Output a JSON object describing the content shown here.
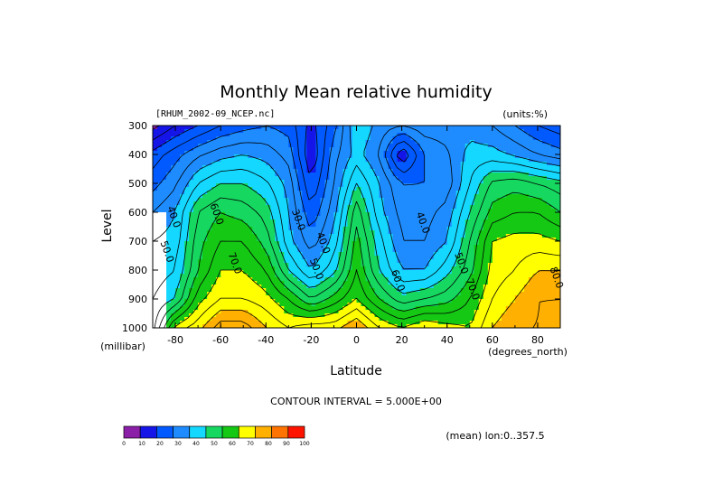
{
  "chart_data": {
    "type": "heatmap",
    "title": "Monthly Mean relative humidity",
    "file_label": "[RHUM_2002-09_NCEP.nc]",
    "units_label": "(units:%)",
    "xlabel": "Latitude",
    "ylabel": "Level",
    "x_unit_label": "(degrees_north)",
    "y_unit_label": "(millibar)",
    "xlim": [
      -90,
      90
    ],
    "ylim": [
      1000,
      300
    ],
    "x_ticks": [
      -80,
      -60,
      -40,
      -20,
      0,
      20,
      40,
      60,
      80
    ],
    "x_tick_labels": [
      "-80",
      "-60",
      "-40",
      "-20",
      "0",
      "20",
      "40",
      "60",
      "80"
    ],
    "y_ticks": [
      300,
      400,
      500,
      600,
      700,
      800,
      900,
      1000
    ],
    "y_tick_labels": [
      "300",
      "400",
      "500",
      "600",
      "700",
      "800",
      "900",
      "1000"
    ],
    "contour_interval_text": "CONTOUR INTERVAL = 5.000E+00",
    "mean_label": "(mean) lon:0..357.5",
    "contour_labels": [
      {
        "text": "40.0",
        "x": -82,
        "y": 620
      },
      {
        "text": "50.0",
        "x": -85,
        "y": 740
      },
      {
        "text": "60.0",
        "x": -63,
        "y": 610
      },
      {
        "text": "70.0",
        "x": -55,
        "y": 780
      },
      {
        "text": "30.0",
        "x": -27,
        "y": 630
      },
      {
        "text": "40.0",
        "x": -16,
        "y": 710
      },
      {
        "text": "50.0",
        "x": -19,
        "y": 800
      },
      {
        "text": "40.0",
        "x": 28,
        "y": 640
      },
      {
        "text": "50.0",
        "x": 45,
        "y": 780
      },
      {
        "text": "60.0",
        "x": 17,
        "y": 840
      },
      {
        "text": "70.0",
        "x": 50,
        "y": 870
      },
      {
        "text": "80.0",
        "x": 87,
        "y": 830
      }
    ],
    "levels": [
      300,
      400,
      500,
      600,
      700,
      800,
      900,
      1000
    ],
    "latitudes": [
      -90,
      -80,
      -70,
      -60,
      -50,
      -40,
      -30,
      -20,
      -10,
      0,
      10,
      20,
      30,
      40,
      50,
      60,
      70,
      80,
      90
    ],
    "values": [
      [
        8,
        15,
        20,
        25,
        28,
        30,
        28,
        18,
        28,
        45,
        38,
        35,
        38,
        38,
        38,
        35,
        30,
        25,
        22
      ],
      [
        22,
        28,
        34,
        38,
        40,
        38,
        33,
        15,
        33,
        42,
        35,
        15,
        30,
        34,
        42,
        42,
        39,
        35,
        32
      ],
      [
        28,
        34,
        45,
        50,
        50,
        46,
        38,
        20,
        35,
        50,
        40,
        30,
        30,
        32,
        45,
        56,
        58,
        55,
        52
      ],
      [
        35,
        40,
        55,
        60,
        58,
        53,
        40,
        26,
        38,
        58,
        42,
        33,
        33,
        37,
        50,
        62,
        65,
        65,
        60
      ],
      [
        40,
        42,
        58,
        65,
        65,
        58,
        42,
        32,
        42,
        62,
        47,
        35,
        35,
        40,
        55,
        70,
        72,
        72,
        70
      ],
      [
        42,
        45,
        60,
        70,
        70,
        65,
        50,
        40,
        48,
        65,
        50,
        40,
        40,
        48,
        58,
        72,
        75,
        80,
        80
      ],
      [
        45,
        50,
        68,
        75,
        75,
        72,
        65,
        55,
        62,
        70,
        60,
        52,
        55,
        58,
        65,
        75,
        80,
        85,
        85
      ],
      [
        48,
        72,
        78,
        88,
        88,
        80,
        75,
        78,
        78,
        85,
        75,
        70,
        75,
        72,
        70,
        80,
        85,
        85,
        88
      ]
    ],
    "missing_region": {
      "lat_max": -84,
      "level_min": 600
    },
    "contour_levels": [
      0,
      10,
      20,
      30,
      40,
      50,
      60,
      70,
      80,
      90,
      100
    ],
    "colorbar": {
      "labels": [
        "0",
        "10",
        "20",
        "30",
        "40",
        "50",
        "60",
        "70",
        "80",
        "90",
        "100"
      ],
      "colors": [
        "#7a14aa",
        "#1e1ee6",
        "#0040ff",
        "#1e78ff",
        "#1ebeff",
        "#20ffff",
        "#10e664",
        "#00cc18",
        "#ffff00",
        "#ffb400",
        "#ff7800",
        "#ff3c00",
        "#ff0000"
      ],
      "bin_colors": [
        "#8b1fa8",
        "#1515e8",
        "#005aff",
        "#1e8cff",
        "#14d8ff",
        "#16d860",
        "#14c814",
        "#ffff00",
        "#ffb000",
        "#ff7400",
        "#ff1400"
      ]
    }
  }
}
